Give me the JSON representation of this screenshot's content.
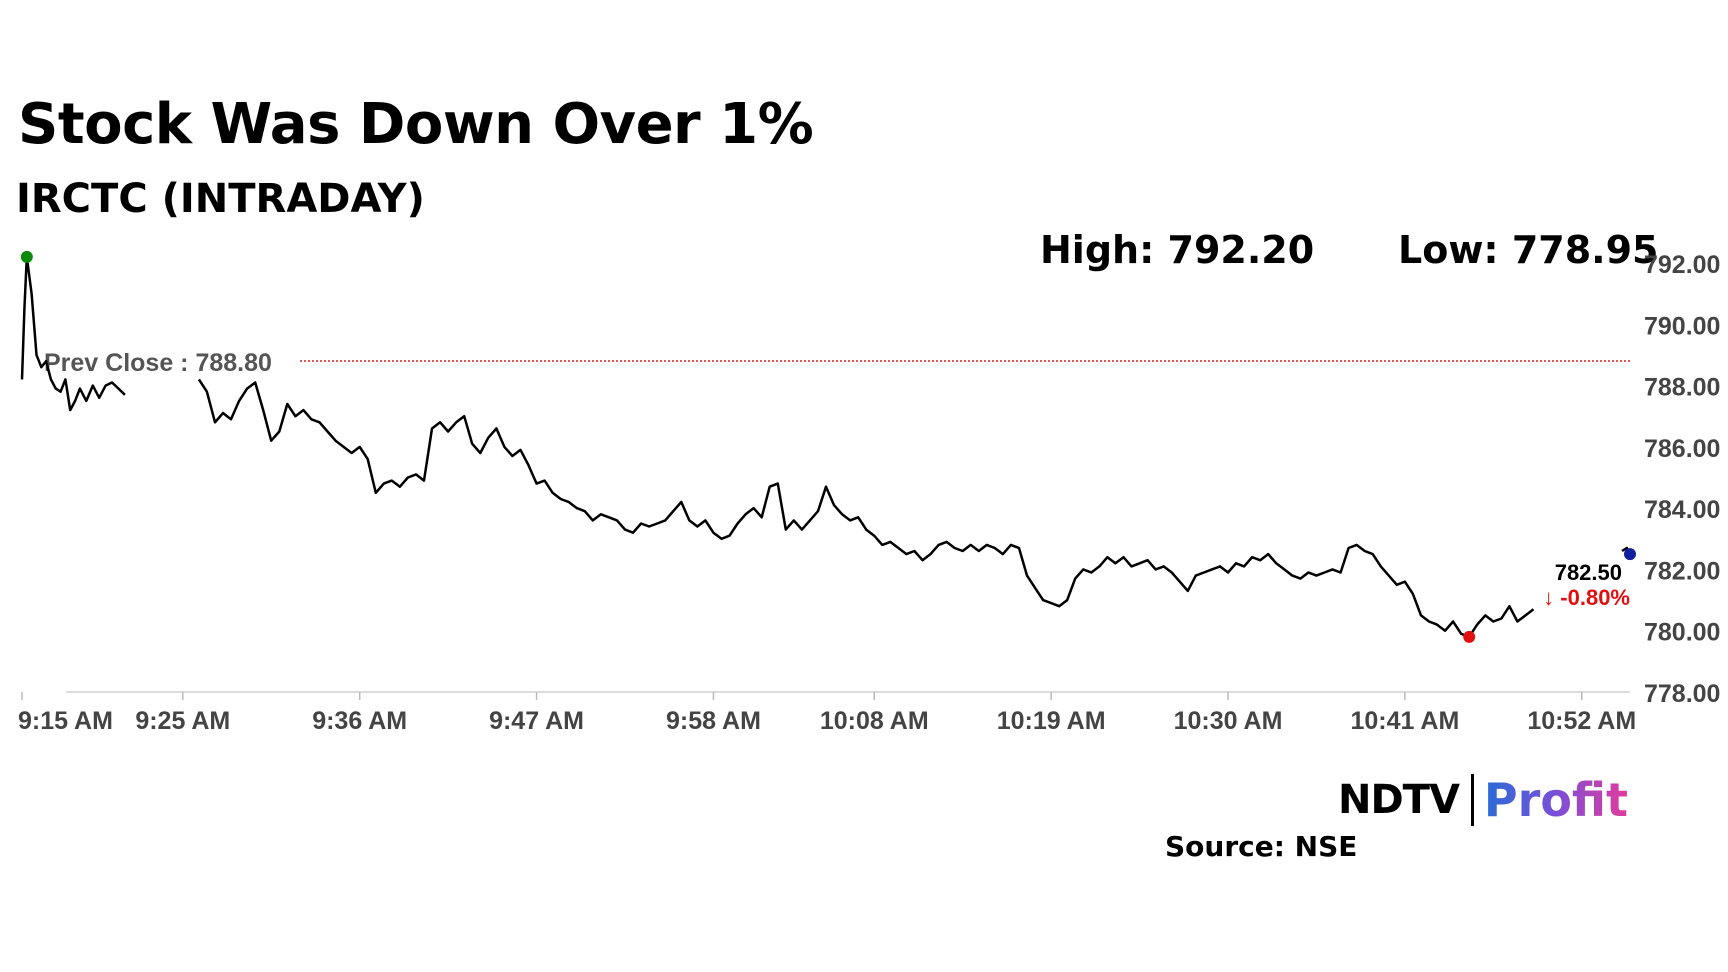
{
  "header": {
    "title": "Stock Was Down Over 1%",
    "subtitle": "IRCTC (INTRADAY)",
    "high": "High: 792.20",
    "low": "Low: 778.95"
  },
  "footer": {
    "source": "Source: NSE",
    "logo_ndtv": "NDTV",
    "logo_profit": "Profit"
  },
  "colors": {
    "line": "#000000",
    "prev_close_line": "#d62020",
    "high_marker": "#0a8a0a",
    "low_marker": "#e01010",
    "last_marker": "#1020a0",
    "change_negative": "#e01010"
  },
  "chart_data": {
    "type": "line",
    "title": "Stock Was Down Over 1%",
    "subtitle": "IRCTC (INTRADAY)",
    "xlabel": "",
    "ylabel": "",
    "ylim": [
      778,
      792
    ],
    "yticks": [
      792,
      790,
      788,
      786,
      784,
      782,
      780,
      778
    ],
    "ytick_labels": [
      "792.00",
      "790.00",
      "788.00",
      "786.00",
      "784.00",
      "782.00",
      "780.00",
      "778.00"
    ],
    "xlim_minutes_after_open": [
      0,
      100
    ],
    "xticks": [
      "9:15 AM",
      "9:25 AM",
      "9:36 AM",
      "9:47 AM",
      "9:58 AM",
      "10:08 AM",
      "10:19 AM",
      "10:30 AM",
      "10:41 AM",
      "10:52 AM"
    ],
    "xtick_minutes_after_open": [
      0,
      10,
      21,
      32,
      43,
      53,
      64,
      75,
      86,
      97
    ],
    "prev_close": {
      "label": "Prev Close : 788.80",
      "value": 788.8
    },
    "high": {
      "value": 792.2,
      "label": "High: 792.20"
    },
    "low": {
      "value": 778.95,
      "label": "Low: 778.95"
    },
    "last": {
      "price_label": "782.50",
      "change_label": "↓ -0.80%",
      "value": 782.5
    },
    "series": [
      {
        "segments": [
          [
            [
              0,
              788.2
            ],
            [
              0.15,
              790.5
            ],
            [
              0.3,
              792.2
            ],
            [
              0.6,
              791.0
            ],
            [
              0.9,
              789.0
            ],
            [
              1.2,
              788.6
            ],
            [
              1.5,
              788.8
            ],
            [
              1.8,
              788.2
            ],
            [
              2.1,
              787.9
            ],
            [
              2.4,
              787.8
            ],
            [
              2.7,
              788.2
            ],
            [
              3.0,
              787.2
            ],
            [
              3.3,
              787.5
            ],
            [
              3.6,
              787.9
            ],
            [
              4.0,
              787.5
            ],
            [
              4.4,
              788.0
            ],
            [
              4.8,
              787.6
            ],
            [
              5.2,
              788.0
            ],
            [
              5.6,
              788.1
            ],
            [
              6.0,
              787.9
            ],
            [
              6.4,
              787.7
            ]
          ],
          [
            [
              11.0,
              788.2
            ],
            [
              11.5,
              787.8
            ],
            [
              12.0,
              786.8
            ],
            [
              12.5,
              787.1
            ],
            [
              13.0,
              786.9
            ],
            [
              13.5,
              787.5
            ],
            [
              14.0,
              787.9
            ],
            [
              14.5,
              788.1
            ],
            [
              15.0,
              787.2
            ],
            [
              15.5,
              786.2
            ],
            [
              16.0,
              786.5
            ],
            [
              16.5,
              787.4
            ],
            [
              17.0,
              787.0
            ],
            [
              17.5,
              787.2
            ],
            [
              18.0,
              786.9
            ],
            [
              18.5,
              786.8
            ],
            [
              19.0,
              786.5
            ],
            [
              19.5,
              786.2
            ],
            [
              20.0,
              786.0
            ],
            [
              20.5,
              785.8
            ],
            [
              21.0,
              786.0
            ],
            [
              21.5,
              785.6
            ],
            [
              22.0,
              784.5
            ],
            [
              22.5,
              784.8
            ],
            [
              23.0,
              784.9
            ],
            [
              23.5,
              784.7
            ],
            [
              24.0,
              785.0
            ],
            [
              24.5,
              785.1
            ],
            [
              25.0,
              784.9
            ],
            [
              25.5,
              786.6
            ],
            [
              26.0,
              786.8
            ],
            [
              26.5,
              786.5
            ],
            [
              27.0,
              786.8
            ],
            [
              27.5,
              787.0
            ],
            [
              28.0,
              786.1
            ],
            [
              28.5,
              785.8
            ],
            [
              29.0,
              786.3
            ],
            [
              29.5,
              786.6
            ],
            [
              30.0,
              786.0
            ],
            [
              30.5,
              785.7
            ],
            [
              31.0,
              785.9
            ],
            [
              31.5,
              785.4
            ],
            [
              32.0,
              784.8
            ],
            [
              32.5,
              784.9
            ],
            [
              33.0,
              784.5
            ],
            [
              33.5,
              784.3
            ],
            [
              34.0,
              784.2
            ],
            [
              34.5,
              784.0
            ],
            [
              35.0,
              783.9
            ],
            [
              35.5,
              783.6
            ],
            [
              36.0,
              783.8
            ],
            [
              36.5,
              783.7
            ],
            [
              37.0,
              783.6
            ],
            [
              37.5,
              783.3
            ],
            [
              38.0,
              783.2
            ],
            [
              38.5,
              783.5
            ],
            [
              39.0,
              783.4
            ],
            [
              39.5,
              783.5
            ],
            [
              40.0,
              783.6
            ],
            [
              40.5,
              783.9
            ],
            [
              41.0,
              784.2
            ],
            [
              41.5,
              783.6
            ],
            [
              42.0,
              783.4
            ],
            [
              42.5,
              783.6
            ],
            [
              43.0,
              783.2
            ],
            [
              43.5,
              783.0
            ],
            [
              44.0,
              783.1
            ],
            [
              44.5,
              783.5
            ],
            [
              45.0,
              783.8
            ],
            [
              45.5,
              784.0
            ],
            [
              46.0,
              783.7
            ],
            [
              46.5,
              784.7
            ],
            [
              47.0,
              784.8
            ],
            [
              47.5,
              783.3
            ],
            [
              48.0,
              783.6
            ],
            [
              48.5,
              783.3
            ],
            [
              49.0,
              783.6
            ],
            [
              49.5,
              783.9
            ],
            [
              50.0,
              784.7
            ],
            [
              50.5,
              784.1
            ],
            [
              51.0,
              783.8
            ],
            [
              51.5,
              783.6
            ],
            [
              52.0,
              783.7
            ],
            [
              52.5,
              783.3
            ],
            [
              53.0,
              783.1
            ],
            [
              53.5,
              782.8
            ],
            [
              54.0,
              782.9
            ],
            [
              54.5,
              782.7
            ],
            [
              55.0,
              782.5
            ],
            [
              55.5,
              782.6
            ],
            [
              56.0,
              782.3
            ],
            [
              56.5,
              782.5
            ],
            [
              57.0,
              782.8
            ],
            [
              57.5,
              782.9
            ],
            [
              58.0,
              782.7
            ],
            [
              58.5,
              782.6
            ],
            [
              59.0,
              782.8
            ],
            [
              59.5,
              782.6
            ],
            [
              60.0,
              782.8
            ],
            [
              60.5,
              782.7
            ],
            [
              61.0,
              782.5
            ],
            [
              61.5,
              782.8
            ],
            [
              62.0,
              782.7
            ],
            [
              62.5,
              781.8
            ],
            [
              63.0,
              781.4
            ],
            [
              63.5,
              781.0
            ],
            [
              64.0,
              780.9
            ],
            [
              64.5,
              780.8
            ],
            [
              65.0,
              781.0
            ],
            [
              65.5,
              781.7
            ],
            [
              66.0,
              782.0
            ],
            [
              66.5,
              781.9
            ],
            [
              67.0,
              782.1
            ],
            [
              67.5,
              782.4
            ],
            [
              68.0,
              782.2
            ],
            [
              68.5,
              782.4
            ],
            [
              69.0,
              782.1
            ],
            [
              69.5,
              782.2
            ],
            [
              70.0,
              782.3
            ],
            [
              70.5,
              782.0
            ],
            [
              71.0,
              782.1
            ],
            [
              71.5,
              781.9
            ],
            [
              72.0,
              781.6
            ],
            [
              72.5,
              781.3
            ],
            [
              73.0,
              781.8
            ],
            [
              73.5,
              781.9
            ],
            [
              74.0,
              782.0
            ],
            [
              74.5,
              782.1
            ],
            [
              75.0,
              781.9
            ],
            [
              75.5,
              782.2
            ],
            [
              76.0,
              782.1
            ],
            [
              76.5,
              782.4
            ],
            [
              77.0,
              782.3
            ],
            [
              77.5,
              782.5
            ],
            [
              78.0,
              782.2
            ],
            [
              78.5,
              782.0
            ],
            [
              79.0,
              781.8
            ],
            [
              79.5,
              781.7
            ],
            [
              80.0,
              781.9
            ],
            [
              80.5,
              781.8
            ],
            [
              81.0,
              781.9
            ],
            [
              81.5,
              782.0
            ],
            [
              82.0,
              781.9
            ],
            [
              82.5,
              782.7
            ],
            [
              83.0,
              782.8
            ],
            [
              83.5,
              782.6
            ],
            [
              84.0,
              782.5
            ],
            [
              84.5,
              782.1
            ],
            [
              85.0,
              781.8
            ],
            [
              85.5,
              781.5
            ],
            [
              86.0,
              781.6
            ],
            [
              86.5,
              781.2
            ],
            [
              87.0,
              780.5
            ],
            [
              87.5,
              780.3
            ],
            [
              88.0,
              780.2
            ],
            [
              88.5,
              780.0
            ],
            [
              89.0,
              780.3
            ],
            [
              89.5,
              779.9
            ],
            [
              90.0,
              779.8
            ],
            [
              90.5,
              780.2
            ],
            [
              91.0,
              780.5
            ],
            [
              91.5,
              780.3
            ],
            [
              92.0,
              780.4
            ],
            [
              92.5,
              780.8
            ],
            [
              93.0,
              780.3
            ],
            [
              93.5,
              780.5
            ],
            [
              94.0,
              780.7
            ]
          ],
          [
            [
              99.5,
              782.6
            ],
            [
              99.8,
              782.7
            ],
            [
              100.0,
              782.5
            ]
          ]
        ]
      }
    ],
    "grid": false,
    "legend": "none"
  }
}
